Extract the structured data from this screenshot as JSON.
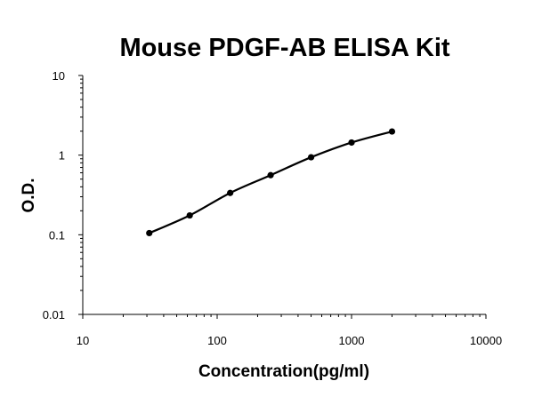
{
  "chart_data": {
    "type": "line",
    "title": "Mouse PDGF-AB ELISA Kit",
    "xlabel": "Concentration(pg/ml)",
    "ylabel": "O.D.",
    "x_scale": "log",
    "y_scale": "log",
    "xlim": [
      10,
      10000
    ],
    "ylim": [
      0.01,
      10
    ],
    "x_ticks": [
      "10",
      "100",
      "1000",
      "10000"
    ],
    "y_ticks": [
      "0.01",
      "0.1",
      "1",
      "10"
    ],
    "grid": false,
    "legend": "none",
    "series": [
      {
        "x": [
          31.25,
          62.5,
          125,
          250,
          500,
          1000,
          2000
        ],
        "y": [
          0.105,
          0.175,
          0.335,
          0.56,
          0.94,
          1.44,
          1.98
        ],
        "color": "#000000",
        "marker": "circle",
        "smooth": true
      }
    ]
  }
}
